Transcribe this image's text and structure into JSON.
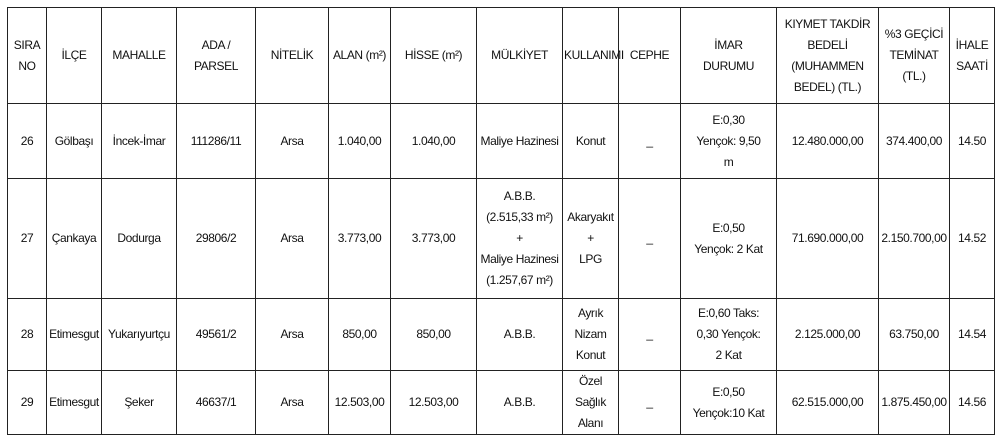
{
  "table": {
    "headers": [
      "SIRA\nNO",
      "İLÇE",
      "MAHALLE",
      "ADA /\nPARSEL",
      "NİTELİK",
      "ALAN (m²)",
      "HİSSE (m²)",
      "MÜLKİYET",
      "KULLANIMI",
      "CEPHE",
      "İMAR\nDURUMU",
      "KIYMET TAKDİR\nBEDELİ\n(MUHAMMEN\nBEDEL) (TL.)",
      "%3 GEÇİCİ\nTEMİNAT\n(TL.)",
      "İHALE\nSAATİ"
    ],
    "rows": [
      [
        "26",
        "Gölbaşı",
        "İncek-İmar",
        "111286/11",
        "Arsa",
        "1.040,00",
        "1.040,00",
        "Maliye Hazinesi",
        "Konut",
        "_",
        "E:0,30\nYençok: 9,50\nm",
        "12.480.000,00",
        "374.400,00",
        "14.50"
      ],
      [
        "27",
        "Çankaya",
        "Dodurga",
        "29806/2",
        "Arsa",
        "3.773,00",
        "3.773,00",
        "A.B.B.\n(2.515,33 m²)\n+\nMaliye Hazinesi\n(1.257,67 m²)",
        "Akaryakıt +\nLPG",
        "_",
        "E:0,50\nYençok: 2 Kat",
        "71.690.000,00",
        "2.150.700,00",
        "14.52"
      ],
      [
        "28",
        "Etimesgut",
        "Yukarıyurtçu",
        "49561/2",
        "Arsa",
        "850,00",
        "850,00",
        "A.B.B.",
        "Ayrık Nizam\nKonut",
        "_",
        "E:0,60 Taks:\n0,30 Yençok:\n2 Kat",
        "2.125.000,00",
        "63.750,00",
        "14.54"
      ],
      [
        "29",
        "Etimesgut",
        "Şeker",
        "46637/1",
        "Arsa",
        "12.503,00",
        "12.503,00",
        "A.B.B.",
        "Özel Sağlık\nAlanı",
        "_",
        "E:0,50\nYençok:10 Kat",
        "62.515.000,00",
        "1.875.450,00",
        "14.56"
      ]
    ]
  }
}
